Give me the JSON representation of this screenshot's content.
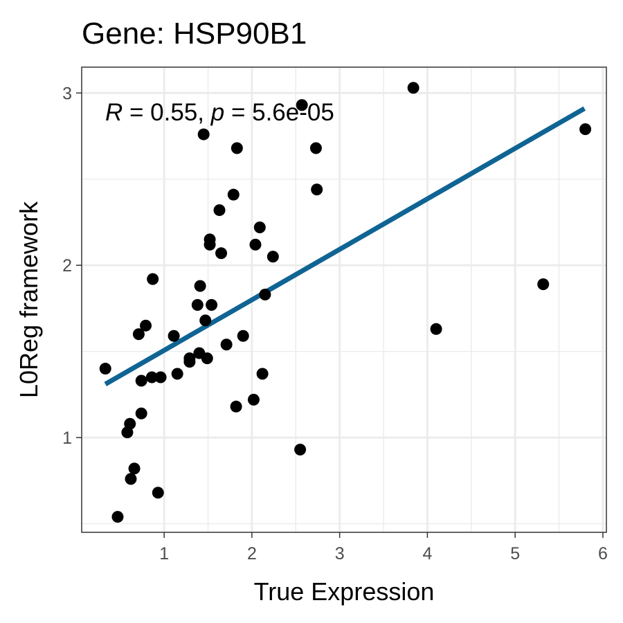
{
  "chart_data": {
    "type": "scatter",
    "title": "Gene: HSP90B1",
    "xlabel": "True Expression",
    "ylabel": "L0Reg framework",
    "xlim": [
      0.06,
      6.04
    ],
    "ylim": [
      0.45,
      3.15
    ],
    "x_ticks": [
      1,
      2,
      3,
      4,
      5,
      6
    ],
    "x_tick_labels": [
      "1",
      "2",
      "3",
      "4",
      "5",
      "6"
    ],
    "y_ticks": [
      1,
      2,
      3
    ],
    "y_tick_labels": [
      "1",
      "2",
      "3"
    ],
    "grid": true,
    "annotation": {
      "r_symbol": "R",
      "r_text": " = 0.55, ",
      "p_symbol": "p",
      "p_text": " = 5.6e-05"
    },
    "fit_line": {
      "x": [
        0.33,
        5.79
      ],
      "y": [
        1.31,
        2.91
      ],
      "color": "#0f6494"
    },
    "point_color": "#000000",
    "series": [
      {
        "points": [
          [
            0.33,
            1.4
          ],
          [
            0.47,
            0.54
          ],
          [
            0.58,
            1.03
          ],
          [
            0.61,
            1.08
          ],
          [
            0.62,
            0.76
          ],
          [
            0.66,
            0.82
          ],
          [
            0.71,
            1.6
          ],
          [
            0.74,
            1.14
          ],
          [
            0.74,
            1.33
          ],
          [
            0.79,
            1.65
          ],
          [
            0.86,
            1.35
          ],
          [
            0.87,
            1.92
          ],
          [
            0.93,
            0.68
          ],
          [
            0.96,
            1.35
          ],
          [
            1.11,
            1.59
          ],
          [
            1.15,
            1.37
          ],
          [
            1.29,
            1.46
          ],
          [
            1.29,
            1.44
          ],
          [
            1.38,
            1.77
          ],
          [
            1.4,
            1.49
          ],
          [
            1.41,
            1.88
          ],
          [
            1.45,
            2.76
          ],
          [
            1.47,
            1.68
          ],
          [
            1.49,
            1.46
          ],
          [
            1.52,
            2.15
          ],
          [
            1.52,
            2.12
          ],
          [
            1.54,
            1.77
          ],
          [
            1.63,
            2.32
          ],
          [
            1.65,
            2.07
          ],
          [
            1.71,
            1.54
          ],
          [
            1.79,
            2.41
          ],
          [
            1.82,
            1.18
          ],
          [
            1.83,
            2.68
          ],
          [
            1.9,
            1.59
          ],
          [
            2.02,
            1.22
          ],
          [
            2.04,
            2.12
          ],
          [
            2.09,
            2.22
          ],
          [
            2.12,
            1.37
          ],
          [
            2.15,
            1.83
          ],
          [
            2.24,
            2.05
          ],
          [
            2.55,
            0.93
          ],
          [
            2.57,
            2.93
          ],
          [
            2.73,
            2.68
          ],
          [
            2.74,
            2.44
          ],
          [
            3.84,
            3.03
          ],
          [
            4.1,
            1.63
          ],
          [
            5.32,
            1.89
          ],
          [
            5.8,
            2.79
          ]
        ]
      }
    ]
  }
}
